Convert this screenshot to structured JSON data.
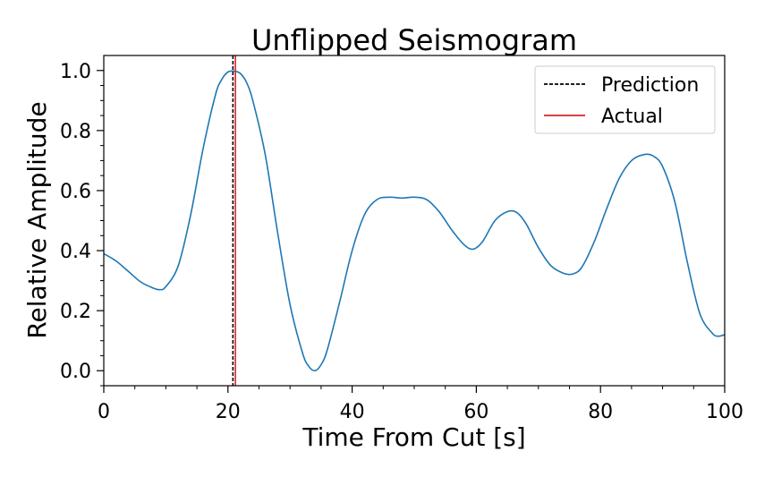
{
  "chart_data": {
    "type": "line",
    "title": "Unflipped Seismogram",
    "xlabel": "Time From Cut [s]",
    "ylabel": "Relative Amplitude",
    "xlim": [
      0,
      100
    ],
    "ylim": [
      -0.05,
      1.05
    ],
    "xticks": [
      0,
      20,
      40,
      60,
      80,
      100
    ],
    "yticks": [
      0.0,
      0.2,
      0.4,
      0.6,
      0.8,
      1.0
    ],
    "grid": false,
    "legend_position": "top-right",
    "series": [
      {
        "color": "#1f77b4",
        "x": [
          0,
          2,
          4,
          6,
          8,
          9,
          10,
          12,
          14,
          16,
          18,
          19,
          20,
          21,
          22,
          23,
          24,
          26,
          28,
          30,
          32,
          33,
          34,
          35,
          36,
          38,
          40,
          42,
          44,
          46,
          48,
          50,
          52,
          54,
          56,
          58,
          59.5,
          61,
          63,
          65,
          66.5,
          68,
          70,
          72,
          74,
          75.5,
          77,
          79,
          81,
          83,
          85,
          87,
          88.5,
          90,
          92,
          94,
          96,
          98,
          99,
          100
        ],
        "y": [
          0.39,
          0.365,
          0.33,
          0.295,
          0.275,
          0.27,
          0.28,
          0.35,
          0.52,
          0.74,
          0.92,
          0.97,
          0.995,
          0.998,
          0.99,
          0.96,
          0.9,
          0.72,
          0.46,
          0.22,
          0.06,
          0.015,
          0.0,
          0.02,
          0.07,
          0.23,
          0.4,
          0.52,
          0.57,
          0.578,
          0.575,
          0.578,
          0.57,
          0.53,
          0.47,
          0.42,
          0.405,
          0.43,
          0.5,
          0.53,
          0.527,
          0.49,
          0.41,
          0.35,
          0.325,
          0.322,
          0.345,
          0.43,
          0.54,
          0.64,
          0.7,
          0.72,
          0.715,
          0.68,
          0.56,
          0.36,
          0.19,
          0.125,
          0.115,
          0.12
        ]
      }
    ],
    "vlines": [
      {
        "name": "Prediction",
        "x": 20.8,
        "color": "#000000",
        "style": "dashed"
      },
      {
        "name": "Actual",
        "x": 21.2,
        "color": "#d62728",
        "style": "solid"
      }
    ]
  }
}
